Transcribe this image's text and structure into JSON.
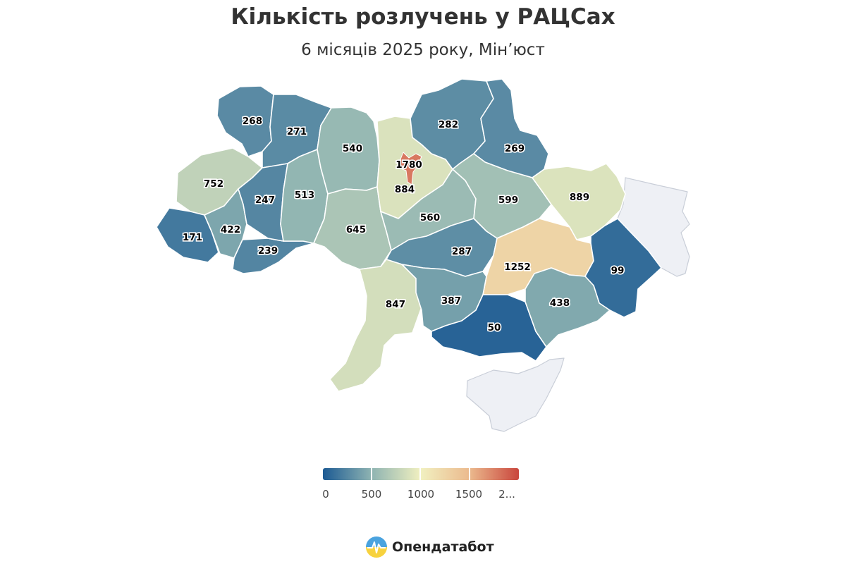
{
  "title": "Кількість розлучень у РАЦСах",
  "subtitle": "6 місяців 2025 року, Мін’юст",
  "color_scale": {
    "min": 0,
    "max": 2000,
    "stops": [
      "#1c5a93",
      "#8fb4b2",
      "#f1f0c0",
      "#ebb98d",
      "#c9453c"
    ],
    "tick_labels": [
      "0",
      "500",
      "1000",
      "1500",
      "2..."
    ]
  },
  "regions": [
    {
      "id": "volyn",
      "value": 268,
      "label": "268"
    },
    {
      "id": "rivne",
      "value": 271,
      "label": "271"
    },
    {
      "id": "zhytomyr",
      "value": 540,
      "label": "540"
    },
    {
      "id": "kyiv_oblast",
      "value": 884,
      "label": "884"
    },
    {
      "id": "kyiv_city",
      "value": 1780,
      "label": "1780"
    },
    {
      "id": "chernihiv",
      "value": 282,
      "label": "282"
    },
    {
      "id": "sumy",
      "value": 269,
      "label": "269"
    },
    {
      "id": "lviv",
      "value": 752,
      "label": "752"
    },
    {
      "id": "ternopil",
      "value": 247,
      "label": "247"
    },
    {
      "id": "khmelnytskyi",
      "value": 513,
      "label": "513"
    },
    {
      "id": "vinnytsia",
      "value": 645,
      "label": "645"
    },
    {
      "id": "cherkasy",
      "value": 560,
      "label": "560"
    },
    {
      "id": "poltava",
      "value": 599,
      "label": "599"
    },
    {
      "id": "kharkiv",
      "value": 889,
      "label": "889"
    },
    {
      "id": "zakarpattia",
      "value": 171,
      "label": "171"
    },
    {
      "id": "ivano_frankivsk",
      "value": 422,
      "label": "422"
    },
    {
      "id": "chernivtsi",
      "value": 239,
      "label": "239"
    },
    {
      "id": "kirovohrad",
      "value": 287,
      "label": "287"
    },
    {
      "id": "dnipro",
      "value": 1252,
      "label": "1252"
    },
    {
      "id": "donetsk",
      "value": 99,
      "label": "99"
    },
    {
      "id": "odesa",
      "value": 847,
      "label": "847"
    },
    {
      "id": "mykolaiv",
      "value": 387,
      "label": "387"
    },
    {
      "id": "kherson",
      "value": 50,
      "label": "50"
    },
    {
      "id": "zaporizhzhia",
      "value": 438,
      "label": "438"
    },
    {
      "id": "luhansk",
      "value": null,
      "label": ""
    },
    {
      "id": "crimea",
      "value": null,
      "label": ""
    }
  ],
  "no_data_color": "#eef0f5",
  "brand": {
    "name": "Опендатабот"
  }
}
